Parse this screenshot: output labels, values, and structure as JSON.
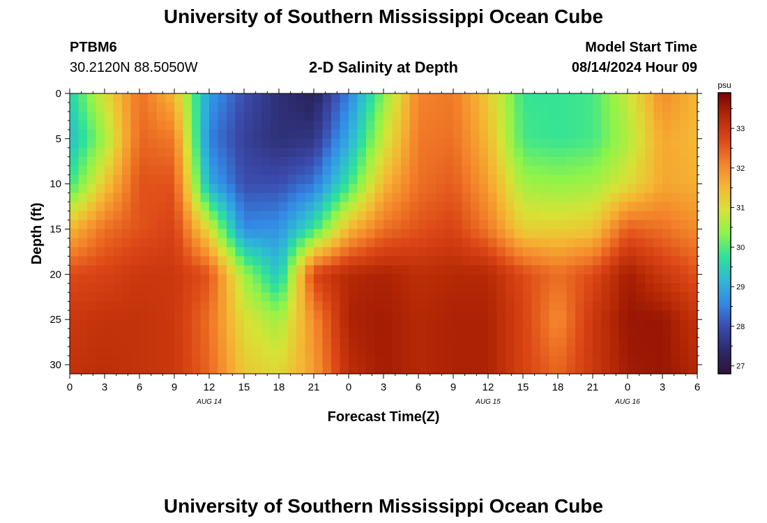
{
  "page": {
    "title_top": "University of Southern Mississippi Ocean Cube",
    "title_bottom": "University of Southern Mississippi Ocean Cube",
    "station_id": "PTBM6",
    "station_coords": "30.2120N  88.5050W",
    "plot_title": "2-D Salinity at Depth",
    "model_start_label": "Model Start Time",
    "model_start_value": "08/14/2024 Hour 09"
  },
  "chart_data": {
    "type": "heatmap",
    "title": "2-D Salinity at Depth",
    "xlabel": "Forecast Time(Z)",
    "ylabel": "Depth (ft)",
    "x_ticks": [
      "0",
      "3",
      "6",
      "9",
      "12",
      "15",
      "18",
      "21",
      "0",
      "3",
      "6",
      "9",
      "12",
      "15",
      "18",
      "21",
      "0",
      "3",
      "6"
    ],
    "date_labels": [
      {
        "label": "AUG 14",
        "tick_index": 4
      },
      {
        "label": "AUG 15",
        "tick_index": 12
      },
      {
        "label": "AUG 16",
        "tick_index": 16
      }
    ],
    "y_ticks": [
      0,
      5,
      10,
      15,
      20,
      25,
      30
    ],
    "ylim": [
      0,
      31
    ],
    "x_hours": [
      0,
      3,
      6,
      9,
      12,
      15,
      18,
      21,
      24,
      27,
      30,
      33,
      36,
      39,
      42,
      45,
      48,
      51,
      54
    ],
    "y_depths": [
      0,
      5,
      10,
      15,
      20,
      25,
      31
    ],
    "values": [
      [
        29.5,
        31.0,
        32.3,
        31.5,
        28.8,
        28.0,
        27.5,
        27.2,
        28.5,
        30.3,
        32.1,
        32.2,
        31.3,
        29.8,
        29.8,
        29.9,
        30.8,
        32.0,
        31.5
      ],
      [
        29.2,
        30.5,
        32.4,
        32.2,
        28.5,
        27.8,
        27.5,
        27.6,
        29.0,
        30.8,
        32.2,
        32.3,
        31.5,
        29.9,
        29.8,
        29.9,
        30.6,
        31.7,
        31.5
      ],
      [
        29.8,
        31.3,
        32.6,
        32.6,
        29.0,
        28.0,
        28.0,
        28.4,
        29.8,
        31.5,
        32.3,
        32.5,
        31.8,
        30.5,
        30.4,
        30.5,
        31.0,
        31.7,
        31.6
      ],
      [
        31.5,
        32.3,
        32.6,
        32.8,
        31.0,
        28.6,
        28.7,
        29.8,
        31.5,
        32.3,
        32.6,
        32.8,
        32.2,
        31.2,
        31.2,
        31.3,
        32.5,
        32.3,
        32.0
      ],
      [
        32.7,
        32.8,
        33.0,
        33.0,
        32.6,
        30.5,
        29.3,
        32.8,
        33.3,
        33.4,
        33.2,
        33.3,
        33.3,
        32.7,
        32.3,
        32.7,
        33.5,
        33.0,
        32.6
      ],
      [
        33.0,
        33.1,
        33.1,
        33.0,
        32.3,
        31.0,
        30.5,
        32.0,
        33.4,
        33.5,
        33.3,
        33.4,
        33.4,
        32.8,
        32.0,
        33.0,
        33.6,
        33.6,
        33.1
      ],
      [
        33.1,
        33.2,
        33.1,
        33.0,
        32.4,
        31.3,
        31.1,
        31.8,
        33.2,
        33.5,
        33.3,
        33.4,
        33.4,
        32.8,
        32.4,
        33.0,
        33.5,
        33.6,
        33.3
      ]
    ],
    "colorbar": {
      "unit": "psu",
      "min": 26.8,
      "max": 33.9,
      "ticks": [
        27,
        28,
        29,
        30,
        31,
        32,
        33
      ],
      "stops": [
        "#30123b",
        "#2c2a6b",
        "#3b4bad",
        "#3389e6",
        "#2fb8d6",
        "#2ee29a",
        "#8ef44a",
        "#d8e236",
        "#f5b633",
        "#f3812a",
        "#dc4716",
        "#b62805",
        "#7a0403"
      ]
    }
  }
}
